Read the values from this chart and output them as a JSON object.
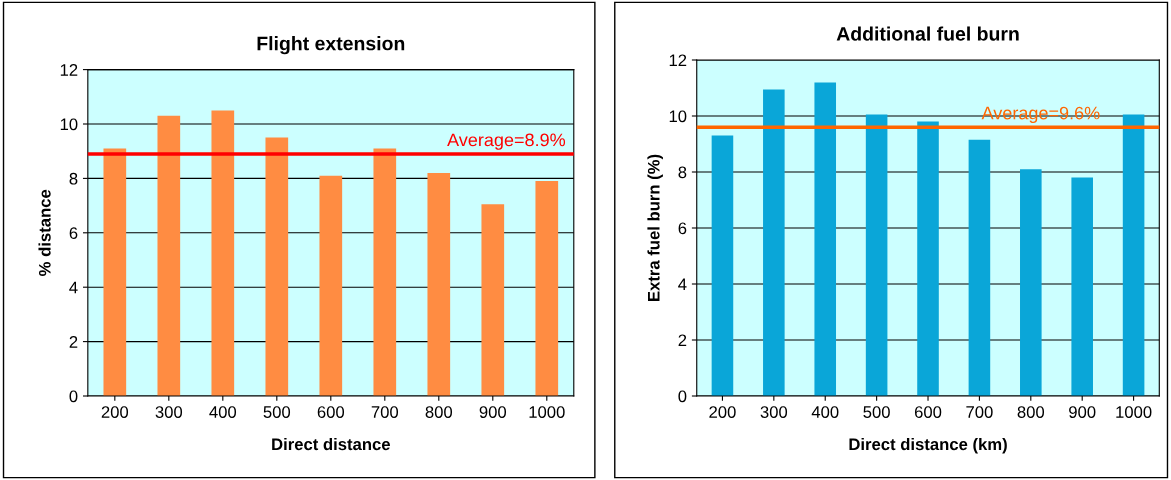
{
  "chart_data": [
    {
      "type": "bar",
      "title": "Flight extension",
      "xlabel": "Direct distance",
      "ylabel": "% distance",
      "categories": [
        "200",
        "300",
        "400",
        "500",
        "600",
        "700",
        "800",
        "900",
        "1000"
      ],
      "values": [
        9.1,
        10.3,
        10.5,
        9.5,
        8.1,
        9.1,
        8.2,
        7.05,
        7.9
      ],
      "color": "#ff8c42",
      "ylim": [
        0,
        12
      ],
      "yticks": [
        0,
        2,
        4,
        6,
        8,
        10,
        12
      ],
      "grid": "y",
      "ref_lines": [
        {
          "axis": "y",
          "value": 8.9,
          "label": "Average=8.9%",
          "color": "#ff0000"
        }
      ]
    },
    {
      "type": "bar",
      "title": "Additional fuel burn",
      "xlabel": "Direct distance (km)",
      "ylabel": "Extra fuel burn (%)",
      "categories": [
        "200",
        "300",
        "400",
        "500",
        "600",
        "700",
        "800",
        "900",
        "1000"
      ],
      "values": [
        9.3,
        10.95,
        11.2,
        10.05,
        9.8,
        9.15,
        8.1,
        7.8,
        10.05
      ],
      "color": "#0aa6d8",
      "ylim": [
        0,
        12
      ],
      "yticks": [
        0,
        2,
        4,
        6,
        8,
        10,
        12
      ],
      "grid": "y",
      "ref_lines": [
        {
          "axis": "y",
          "value": 9.6,
          "label": "Average=9.6%",
          "color": "#ff6600"
        }
      ]
    }
  ]
}
